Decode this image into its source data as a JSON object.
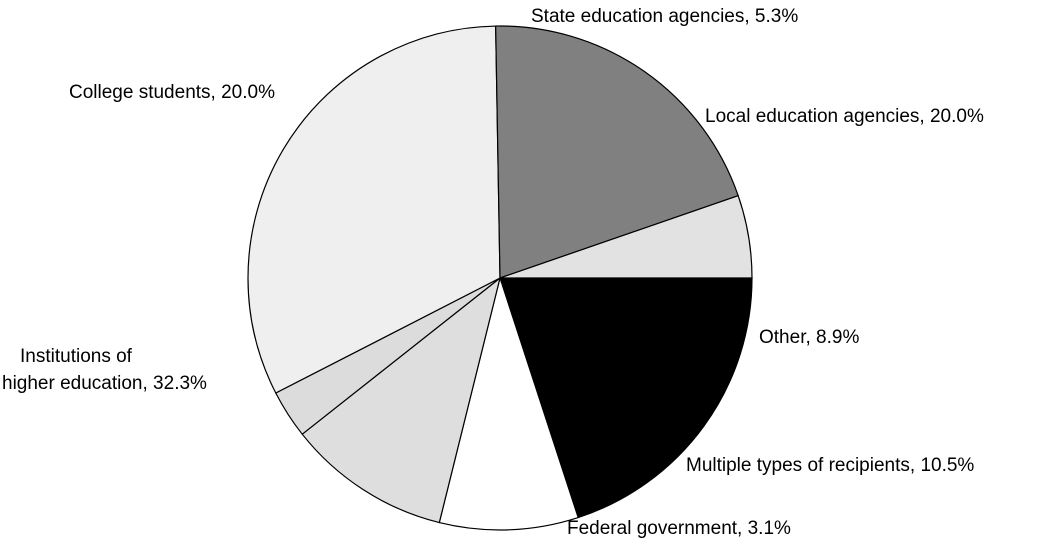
{
  "chart_data": {
    "type": "pie",
    "title": "",
    "slices": [
      {
        "label": "Local education agencies",
        "value": 20.0,
        "display": "Local education agencies, 20.0%",
        "color": "#000000"
      },
      {
        "label": "Other",
        "value": 8.9,
        "display": "Other, 8.9%",
        "color": "#ffffff"
      },
      {
        "label": "Multiple types of recipients",
        "value": 10.5,
        "display": "Multiple types of recipients, 10.5%",
        "color": "#dedede"
      },
      {
        "label": "Federal government",
        "value": 3.1,
        "display": "Federal government, 3.1%",
        "color": "#dcdcdc"
      },
      {
        "label": "Institutions of higher education",
        "value": 32.3,
        "display_lines": [
          "Institutions of",
          "higher education, 32.3%"
        ],
        "color": "#efefef"
      },
      {
        "label": "College students",
        "value": 20.0,
        "display": "College students, 20.0%",
        "color": "#808080"
      },
      {
        "label": "State education agencies",
        "value": 5.3,
        "display": "State education agencies, 5.3%",
        "color": "#e2e2e2"
      }
    ],
    "start_angle_deg": 0,
    "direction": "clockwise"
  }
}
